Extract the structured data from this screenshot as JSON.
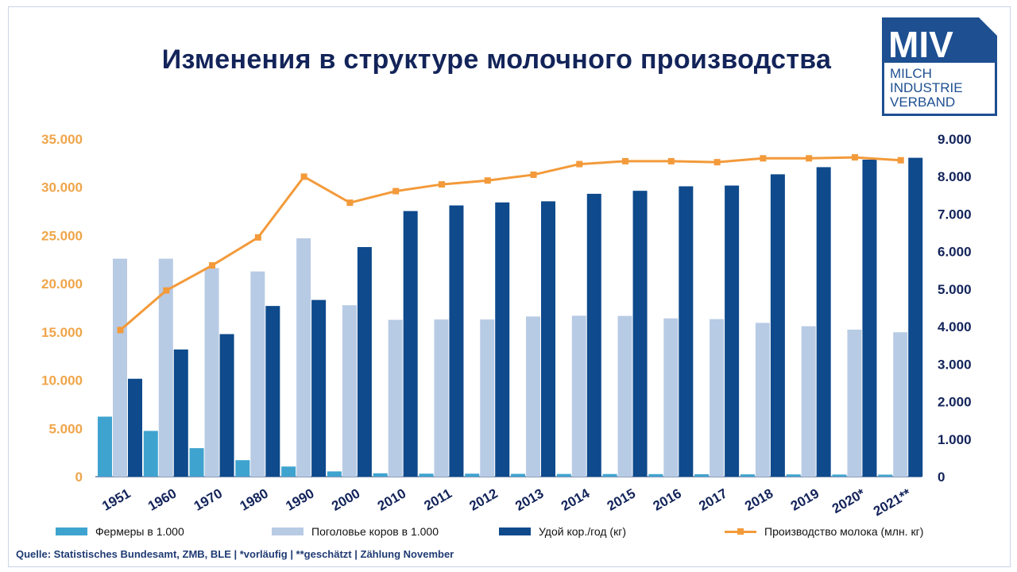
{
  "title": "Изменения в структуре молочного производства",
  "logo": {
    "text_big": "MIV",
    "line1": "MILCH",
    "line2": "INDUSTRIE",
    "line3": "VERBAND"
  },
  "source": "Quelle: Statistisches Bundesamt, ZMB, BLE | *vorläufig | **geschätzt | Zählung November",
  "colors": {
    "farmers": "#3fa3cf",
    "cows": "#b8cbe5",
    "yield": "#0e4a8c",
    "milk": "#f39a3a",
    "axis": "#f0a54a",
    "title": "#13245a"
  },
  "legend": {
    "farmers": "Фермеры в 1.000",
    "cows": "Поголовье коров в 1.000",
    "yield": "Удой  кор./год (кг)",
    "milk": "Производство молока  (млн. кг)"
  },
  "chart_data": {
    "type": "bar",
    "categories": [
      "1951",
      "1960",
      "1970",
      "1980",
      "1990",
      "2000",
      "2010",
      "2011",
      "2012",
      "2013",
      "2014",
      "2015",
      "2016",
      "2017",
      "2018",
      "2019",
      "2020*",
      "2021**"
    ],
    "left_axis": {
      "ylim": [
        0,
        35000
      ],
      "ticks": [
        "0",
        "5.000",
        "10.000",
        "15.000",
        "20.000",
        "25.000",
        "30.000",
        "35.000"
      ]
    },
    "right_axis": {
      "ylim": [
        0,
        9000
      ],
      "ticks": [
        "0",
        "1.000",
        "2.000",
        "3.000",
        "4.000",
        "5.000",
        "6.000",
        "7.000",
        "8.000",
        "9.000"
      ]
    },
    "series": [
      {
        "name": "Фермеры в 1.000",
        "type": "bar",
        "axis": "right",
        "values": [
          1600,
          1220,
          760,
          440,
          270,
          140,
          90,
          80,
          80,
          75,
          72,
          70,
          68,
          65,
          62,
          60,
          56,
          54
        ]
      },
      {
        "name": "Поголовье коров в 1.000",
        "type": "bar",
        "axis": "right",
        "values": [
          5810,
          5810,
          5560,
          5470,
          6355,
          4570,
          4180,
          4190,
          4190,
          4270,
          4290,
          4285,
          4220,
          4200,
          4100,
          4010,
          3920,
          3850
        ]
      },
      {
        "name": "Удой  кор./год (кг)",
        "type": "bar",
        "axis": "right",
        "values": [
          2610,
          3390,
          3800,
          4550,
          4710,
          6120,
          7080,
          7230,
          7310,
          7340,
          7540,
          7620,
          7740,
          7760,
          8060,
          8250,
          8450,
          8500
        ]
      },
      {
        "name": "Производство молока  (млн. кг)",
        "type": "line",
        "axis": "left",
        "values": [
          15200,
          19300,
          21900,
          24800,
          31100,
          28400,
          29600,
          30300,
          30700,
          31300,
          32400,
          32700,
          32700,
          32600,
          33000,
          33000,
          33100,
          32800
        ]
      }
    ]
  }
}
